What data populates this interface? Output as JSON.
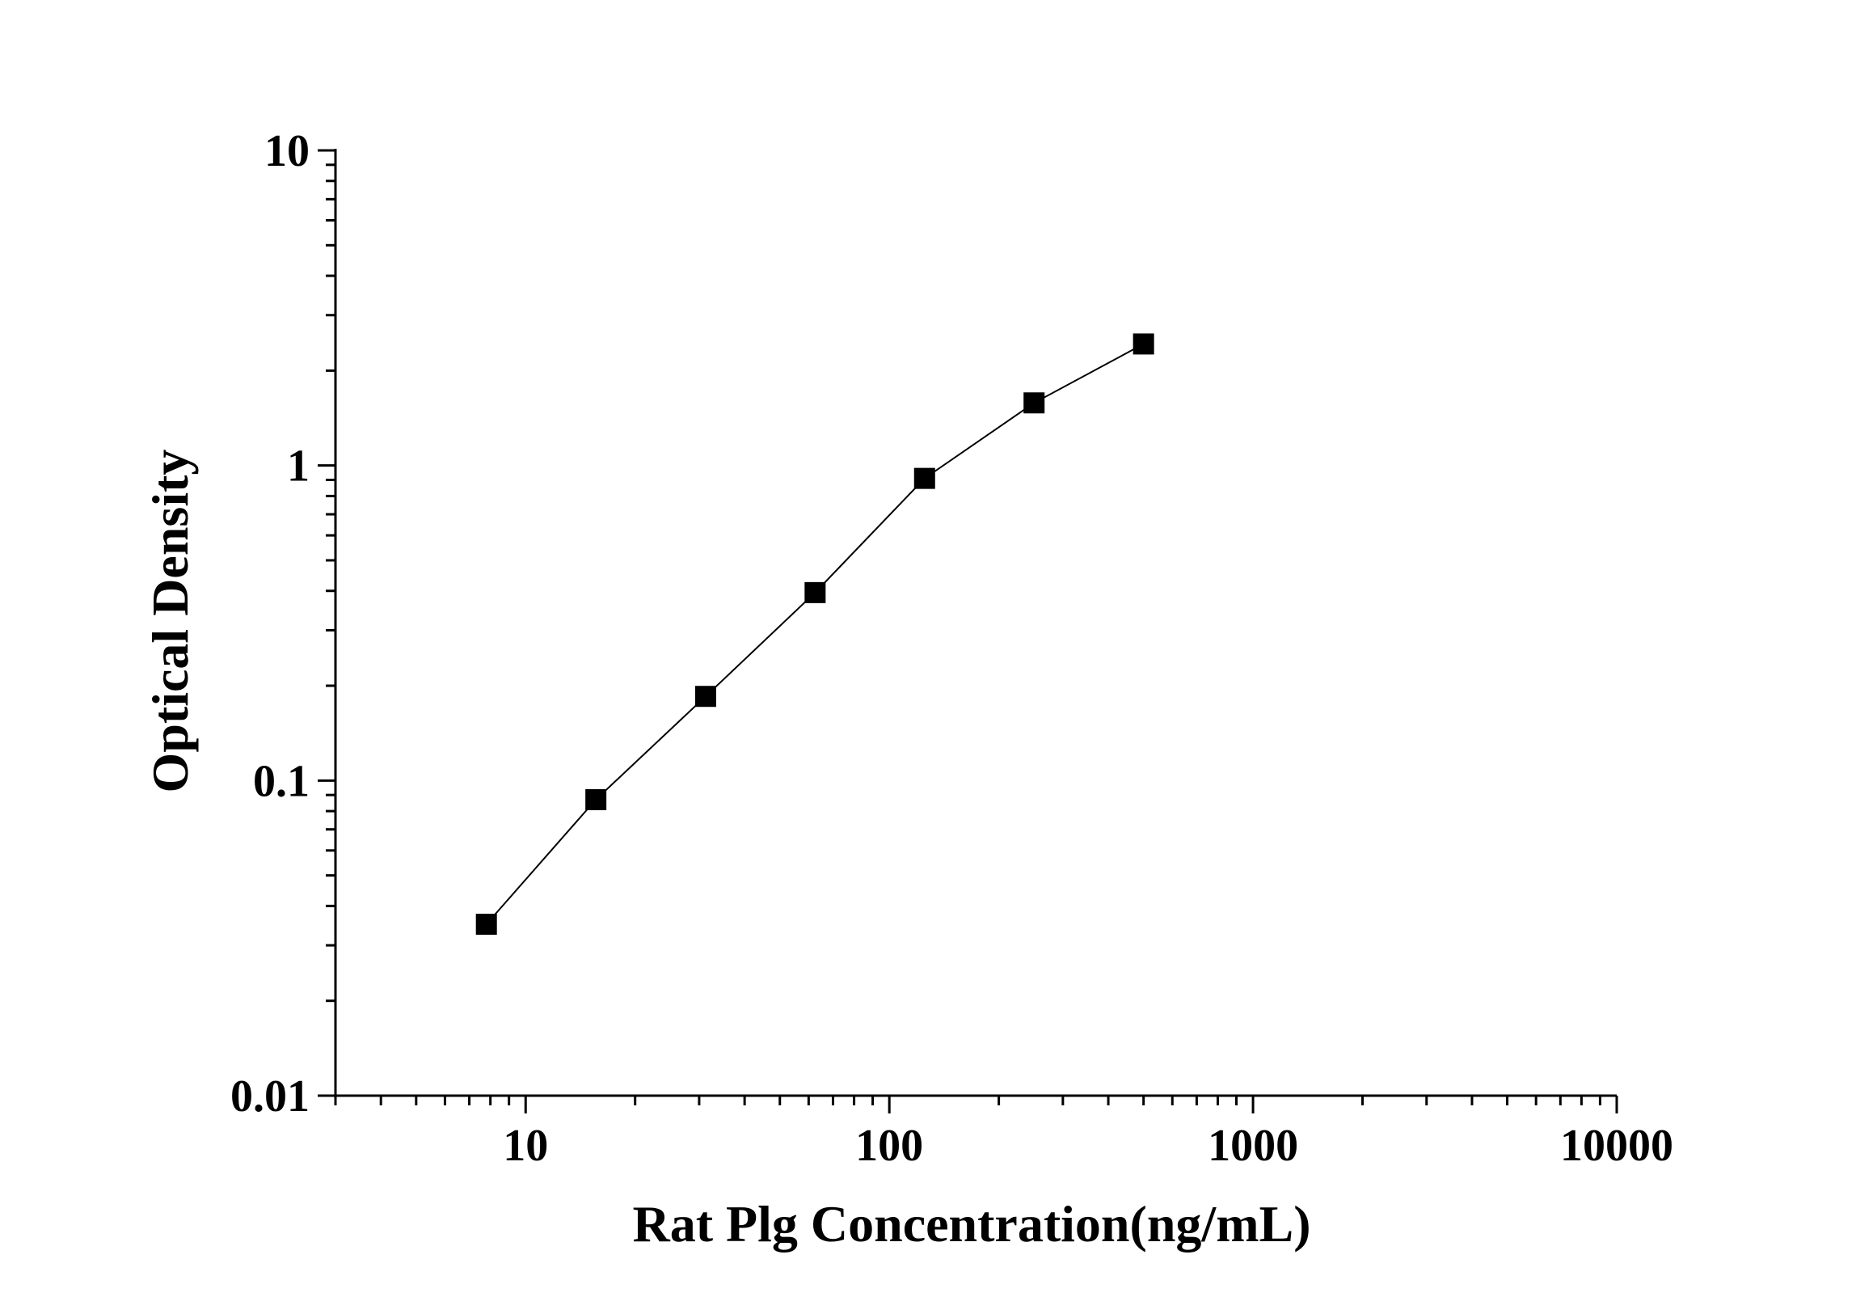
{
  "chart_data": {
    "type": "scatter",
    "title": "",
    "xlabel": "Rat Plg Concentration(ng/mL)",
    "ylabel": "Optical Density",
    "x_scale": "log",
    "y_scale": "log",
    "xlim": [
      3,
      10000
    ],
    "ylim": [
      0.01,
      10
    ],
    "x_ticks": [
      {
        "value": 10,
        "label": "10"
      },
      {
        "value": 100,
        "label": "100"
      },
      {
        "value": 1000,
        "label": "1000"
      },
      {
        "value": 10000,
        "label": "10000"
      }
    ],
    "y_ticks": [
      {
        "value": 0.01,
        "label": "0.01"
      },
      {
        "value": 0.1,
        "label": "0.1"
      },
      {
        "value": 1,
        "label": "1"
      },
      {
        "value": 10,
        "label": "10"
      }
    ],
    "grid": false,
    "legend": "none",
    "series": [
      {
        "marker": "square",
        "line": true,
        "color": "#000000",
        "x": [
          7.8,
          15.6,
          31.25,
          62.5,
          125,
          250,
          500
        ],
        "y": [
          0.035,
          0.087,
          0.185,
          0.395,
          0.91,
          1.58,
          2.43
        ]
      }
    ]
  }
}
